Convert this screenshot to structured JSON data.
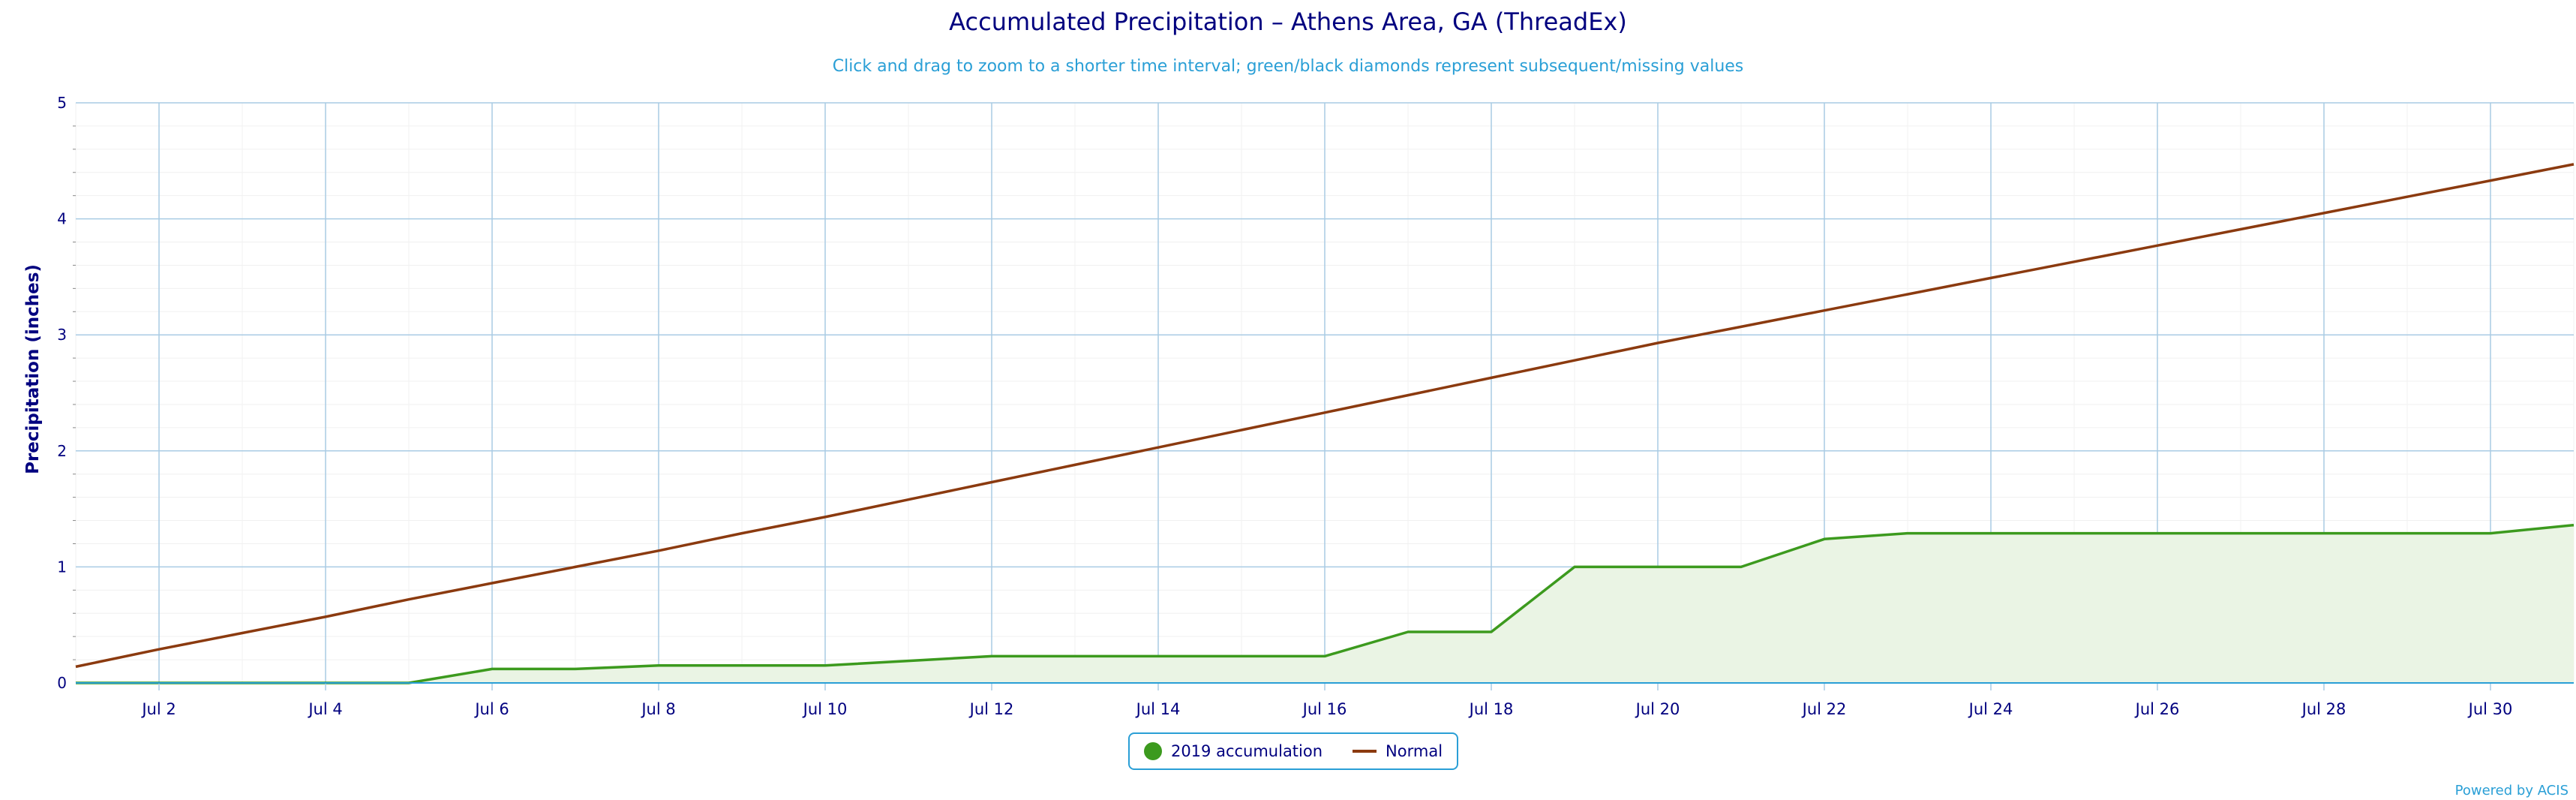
{
  "chart_data": {
    "type": "area",
    "title": "Accumulated Precipitation – Athens Area, GA (ThreadEx)",
    "subtitle": "Click and drag to zoom to a shorter time interval; green/black diamonds represent subsequent/missing values",
    "ylabel": "Precipitation (inches)",
    "xlabel": "",
    "ylim": [
      0,
      5
    ],
    "y_ticks": [
      "0",
      "1",
      "2",
      "3",
      "4",
      "5"
    ],
    "x_ticks": [
      "Jul 2",
      "Jul 4",
      "Jul 6",
      "Jul 8",
      "Jul 10",
      "Jul 12",
      "Jul 14",
      "Jul 16",
      "Jul 18",
      "Jul 20",
      "Jul 22",
      "Jul 24",
      "Jul 26",
      "Jul 28",
      "Jul 30"
    ],
    "x": [
      "Jul 1",
      "Jul 2",
      "Jul 3",
      "Jul 4",
      "Jul 5",
      "Jul 6",
      "Jul 7",
      "Jul 8",
      "Jul 9",
      "Jul 10",
      "Jul 11",
      "Jul 12",
      "Jul 13",
      "Jul 14",
      "Jul 15",
      "Jul 16",
      "Jul 17",
      "Jul 18",
      "Jul 19",
      "Jul 20",
      "Jul 21",
      "Jul 22",
      "Jul 23",
      "Jul 24",
      "Jul 25",
      "Jul 26",
      "Jul 27",
      "Jul 28",
      "Jul 29",
      "Jul 30",
      "Jul 31"
    ],
    "grid": true,
    "legend_position": "bottom-center",
    "series": [
      {
        "name": "2019 accumulation",
        "color": "#3c9a1e",
        "fill": "#eaf4e4",
        "values": [
          0,
          0,
          0,
          0,
          0,
          0.12,
          0.12,
          0.15,
          0.15,
          0.15,
          0.19,
          0.23,
          0.23,
          0.23,
          0.23,
          0.23,
          0.44,
          0.44,
          1.0,
          1.0,
          1.0,
          1.24,
          1.29,
          1.29,
          1.29,
          1.29,
          1.29,
          1.29,
          1.29,
          1.29,
          1.36
        ]
      },
      {
        "name": "Normal",
        "color": "#8b3a0f",
        "values": [
          0.14,
          0.29,
          0.43,
          0.57,
          0.72,
          0.86,
          1.0,
          1.14,
          1.29,
          1.43,
          1.58,
          1.73,
          1.88,
          2.03,
          2.18,
          2.33,
          2.48,
          2.63,
          2.78,
          2.93,
          3.07,
          3.21,
          3.35,
          3.49,
          3.63,
          3.77,
          3.91,
          4.05,
          4.19,
          4.33,
          4.47
        ]
      }
    ]
  },
  "credits": "Powered by ACIS"
}
